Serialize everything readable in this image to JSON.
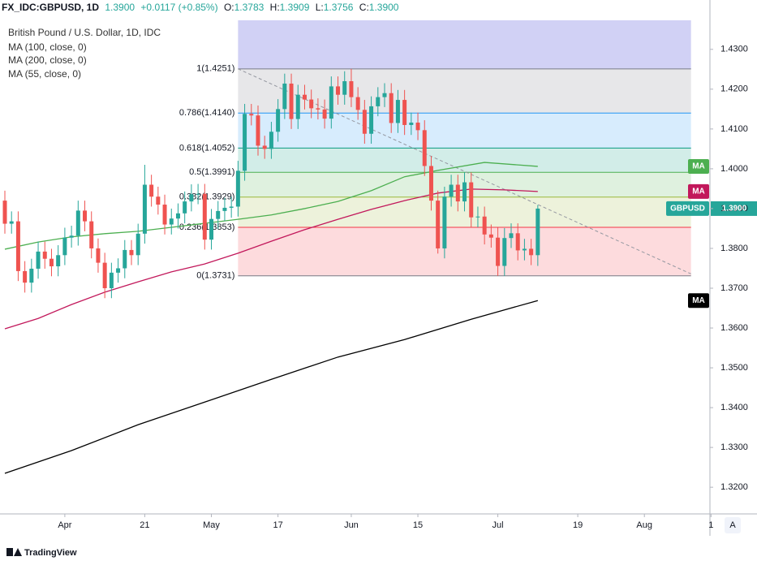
{
  "header": {
    "symbol": "FX_IDC:GBPUSD, 1D",
    "last": "1.3900",
    "change": "+0.0117 (+0.85%)",
    "ohlc": [
      {
        "label": "O:",
        "value": "1.3783"
      },
      {
        "label": "H:",
        "value": "1.3909"
      },
      {
        "label": "L:",
        "value": "1.3756"
      },
      {
        "label": "C:",
        "value": "1.3900"
      }
    ]
  },
  "footer": {
    "brand": "TradingView",
    "button": "A"
  },
  "chart_data": {
    "type": "candlestick",
    "title": "British Pound / U.S. Dollar, 1D, IDC",
    "candles": {
      "up_color": "#26a69a",
      "down_color": "#ef5350",
      "open": [
        1.392,
        1.3862,
        1.3868,
        1.3743,
        1.3714,
        1.3749,
        1.3792,
        1.3774,
        1.3755,
        1.3783,
        1.3827,
        1.3832,
        1.3895,
        1.3868,
        1.38,
        1.3764,
        1.37,
        1.3739,
        1.375,
        1.3796,
        1.3783,
        1.3837,
        1.396,
        1.393,
        1.391,
        1.386,
        1.3875,
        1.3888,
        1.3918,
        1.3936,
        1.3937,
        1.3822,
        1.3874,
        1.3894,
        1.3902,
        1.3905,
        1.3995,
        1.4138,
        1.4134,
        1.4058,
        1.405,
        1.4093,
        1.415,
        1.4214,
        1.4125,
        1.4186,
        1.4174,
        1.4152,
        1.4149,
        1.4126,
        1.4207,
        1.4186,
        1.422,
        1.418,
        1.4148,
        1.4088,
        1.4157,
        1.418,
        1.419,
        1.4115,
        1.4173,
        1.411,
        1.4116,
        1.4097,
        1.4007,
        1.392,
        1.38,
        1.393,
        1.396,
        1.3918,
        1.3966,
        1.3878,
        1.388,
        1.3835,
        1.3827,
        1.3756,
        1.3826,
        1.3838,
        1.3795,
        1.3799,
        1.3783
      ],
      "high": [
        1.3945,
        1.3893,
        1.3893,
        1.3768,
        1.3774,
        1.3817,
        1.3817,
        1.3799,
        1.3808,
        1.3852,
        1.3857,
        1.392,
        1.392,
        1.3893,
        1.3825,
        1.3789,
        1.3764,
        1.3775,
        1.3821,
        1.3821,
        1.3862,
        1.401,
        1.3985,
        1.3955,
        1.3935,
        1.39,
        1.3913,
        1.3943,
        1.3961,
        1.3962,
        1.3962,
        1.3899,
        1.3919,
        1.3927,
        1.393,
        1.402,
        1.4163,
        1.4163,
        1.4159,
        1.4083,
        1.4118,
        1.4175,
        1.4239,
        1.4239,
        1.4211,
        1.4211,
        1.4199,
        1.4177,
        1.4174,
        1.4232,
        1.4232,
        1.4245,
        1.4251,
        1.4205,
        1.4173,
        1.4182,
        1.4205,
        1.4215,
        1.4215,
        1.4198,
        1.4198,
        1.4141,
        1.4141,
        1.4122,
        1.4032,
        1.3945,
        1.3955,
        1.3985,
        1.3985,
        1.3991,
        1.3991,
        1.3905,
        1.3905,
        1.386,
        1.3852,
        1.3851,
        1.3863,
        1.3863,
        1.3824,
        1.3824,
        1.3909
      ],
      "low": [
        1.3837,
        1.3837,
        1.3718,
        1.3689,
        1.3689,
        1.3724,
        1.3749,
        1.373,
        1.373,
        1.3758,
        1.3802,
        1.3807,
        1.3843,
        1.3775,
        1.3739,
        1.3675,
        1.3675,
        1.3714,
        1.3725,
        1.3758,
        1.3758,
        1.3812,
        1.3905,
        1.3885,
        1.3835,
        1.3835,
        1.385,
        1.3863,
        1.3893,
        1.3911,
        1.3797,
        1.3797,
        1.3849,
        1.3869,
        1.3877,
        1.388,
        1.397,
        1.4109,
        1.4033,
        1.4025,
        1.4025,
        1.4068,
        1.4125,
        1.41,
        1.41,
        1.4149,
        1.4127,
        1.4124,
        1.4101,
        1.4101,
        1.4161,
        1.4161,
        1.4155,
        1.4123,
        1.4063,
        1.4063,
        1.4132,
        1.4155,
        1.409,
        1.409,
        1.4085,
        1.4085,
        1.4072,
        1.3982,
        1.3895,
        1.3787,
        1.3775,
        1.3905,
        1.3893,
        1.3893,
        1.3853,
        1.3853,
        1.381,
        1.3802,
        1.3731,
        1.3731,
        1.3801,
        1.377,
        1.377,
        1.3758,
        1.3756
      ],
      "close": [
        1.3862,
        1.3868,
        1.3743,
        1.3714,
        1.3749,
        1.3792,
        1.3774,
        1.3755,
        1.3783,
        1.3827,
        1.3832,
        1.3895,
        1.3868,
        1.38,
        1.3764,
        1.37,
        1.3739,
        1.375,
        1.3796,
        1.3783,
        1.3837,
        1.396,
        1.393,
        1.391,
        1.386,
        1.3875,
        1.3888,
        1.3918,
        1.3936,
        1.3937,
        1.3822,
        1.3874,
        1.3894,
        1.3902,
        1.3905,
        1.3995,
        1.4138,
        1.4134,
        1.4058,
        1.405,
        1.4093,
        1.415,
        1.4214,
        1.4125,
        1.4186,
        1.4174,
        1.4152,
        1.4149,
        1.4126,
        1.4207,
        1.4186,
        1.422,
        1.418,
        1.4148,
        1.4088,
        1.4157,
        1.418,
        1.419,
        1.4115,
        1.4173,
        1.411,
        1.4116,
        1.4097,
        1.4007,
        1.392,
        1.38,
        1.393,
        1.396,
        1.3918,
        1.3966,
        1.3878,
        1.388,
        1.3835,
        1.3827,
        1.3756,
        1.3826,
        1.3838,
        1.3795,
        1.3799,
        1.3783,
        1.39
      ]
    },
    "series": [
      {
        "name": "MA (100, close, 0)",
        "tag": "MA",
        "color": "#c2185b",
        "x": [
          0,
          5,
          10,
          15,
          20,
          25,
          30,
          35,
          40,
          45,
          50,
          55,
          60,
          65,
          70,
          75,
          80
        ],
        "values": [
          1.3598,
          1.3624,
          1.3659,
          1.369,
          1.3716,
          1.3741,
          1.3761,
          1.3788,
          1.3818,
          1.3847,
          1.3873,
          1.3898,
          1.392,
          1.3939,
          1.3949,
          1.3947,
          1.3943
        ]
      },
      {
        "name": "MA (200, close, 0)",
        "tag": "MA",
        "color": "#000000",
        "x": [
          0,
          10,
          20,
          30,
          40,
          50,
          60,
          70,
          80
        ],
        "values": [
          1.3235,
          1.3292,
          1.3357,
          1.3414,
          1.3471,
          1.3527,
          1.3571,
          1.3622,
          1.3669
        ]
      },
      {
        "name": "MA (55, close, 0)",
        "tag": "MA",
        "color": "#4caf50",
        "x": [
          0,
          5,
          10,
          15,
          20,
          25,
          30,
          35,
          40,
          45,
          50,
          55,
          60,
          65,
          72,
          80
        ],
        "values": [
          1.3798,
          1.3816,
          1.3829,
          1.3837,
          1.3843,
          1.3853,
          1.3863,
          1.3873,
          1.3884,
          1.39,
          1.3918,
          1.3945,
          1.398,
          1.3996,
          1.4016,
          1.4006
        ]
      }
    ],
    "last_price": {
      "name": "GBPUSD",
      "value_label": "1.3900",
      "color": "#26a69a"
    },
    "fib": {
      "x": [
        35,
        103
      ],
      "extension_color": "#c5c6f3",
      "levels": [
        {
          "value": 1.4251,
          "label": "1(1.4251)",
          "color": "#787b86"
        },
        {
          "value": 1.414,
          "label": "0.786(1.4140)",
          "color": "#2196f3"
        },
        {
          "value": 1.4052,
          "label": "0.618(1.4052)",
          "color": "#089981"
        },
        {
          "value": 1.3991,
          "label": "0.5(1.3991)",
          "color": "#4caf50"
        },
        {
          "value": 1.3929,
          "label": "0.382(1.3929)",
          "color": "#9bb83a"
        },
        {
          "value": 1.3853,
          "label": "0.236(1.3853)",
          "color": "#f23645"
        },
        {
          "value": 1.3731,
          "label": "0(1.3731)",
          "color": "#787b86"
        }
      ]
    },
    "trendline": {
      "x": [
        35,
        103
      ],
      "values": [
        1.4251,
        1.3736
      ],
      "color": "#9598a1"
    },
    "xlim": [
      -0.73,
      105.84
    ],
    "xticks": [
      {
        "value": 9,
        "label": "Apr"
      },
      21,
      {
        "value": 31,
        "label": "May"
      },
      {
        "value": 41,
        "label": "17"
      },
      {
        "value": 52,
        "label": "Jun"
      },
      {
        "value": 62,
        "label": "15"
      },
      {
        "value": 74,
        "label": "Jul"
      },
      {
        "value": 86,
        "label": "19"
      },
      {
        "value": 96,
        "label": "Aug"
      },
      {
        "value": 106,
        "label": "1"
      }
    ],
    "ylim": [
      1.3133,
      1.4424
    ],
    "yticks": [
      {
        "value": 1.43,
        "label": "1.4300"
      },
      {
        "value": 1.42,
        "label": "1.4200"
      },
      {
        "value": 1.41,
        "label": "1.4100"
      },
      {
        "value": 1.4,
        "label": "1.4000"
      },
      {
        "value": 1.39,
        "label": "1.3900"
      },
      {
        "value": 1.38,
        "label": "1.3800"
      },
      {
        "value": 1.37,
        "label": "1.3700"
      },
      {
        "value": 1.36,
        "label": "1.3600"
      },
      {
        "value": 1.35,
        "label": "1.3500"
      },
      {
        "value": 1.34,
        "label": "1.3400"
      },
      {
        "value": 1.33,
        "label": "1.3300"
      },
      {
        "value": 1.32,
        "label": "1.3200"
      }
    ],
    "grid": false
  }
}
